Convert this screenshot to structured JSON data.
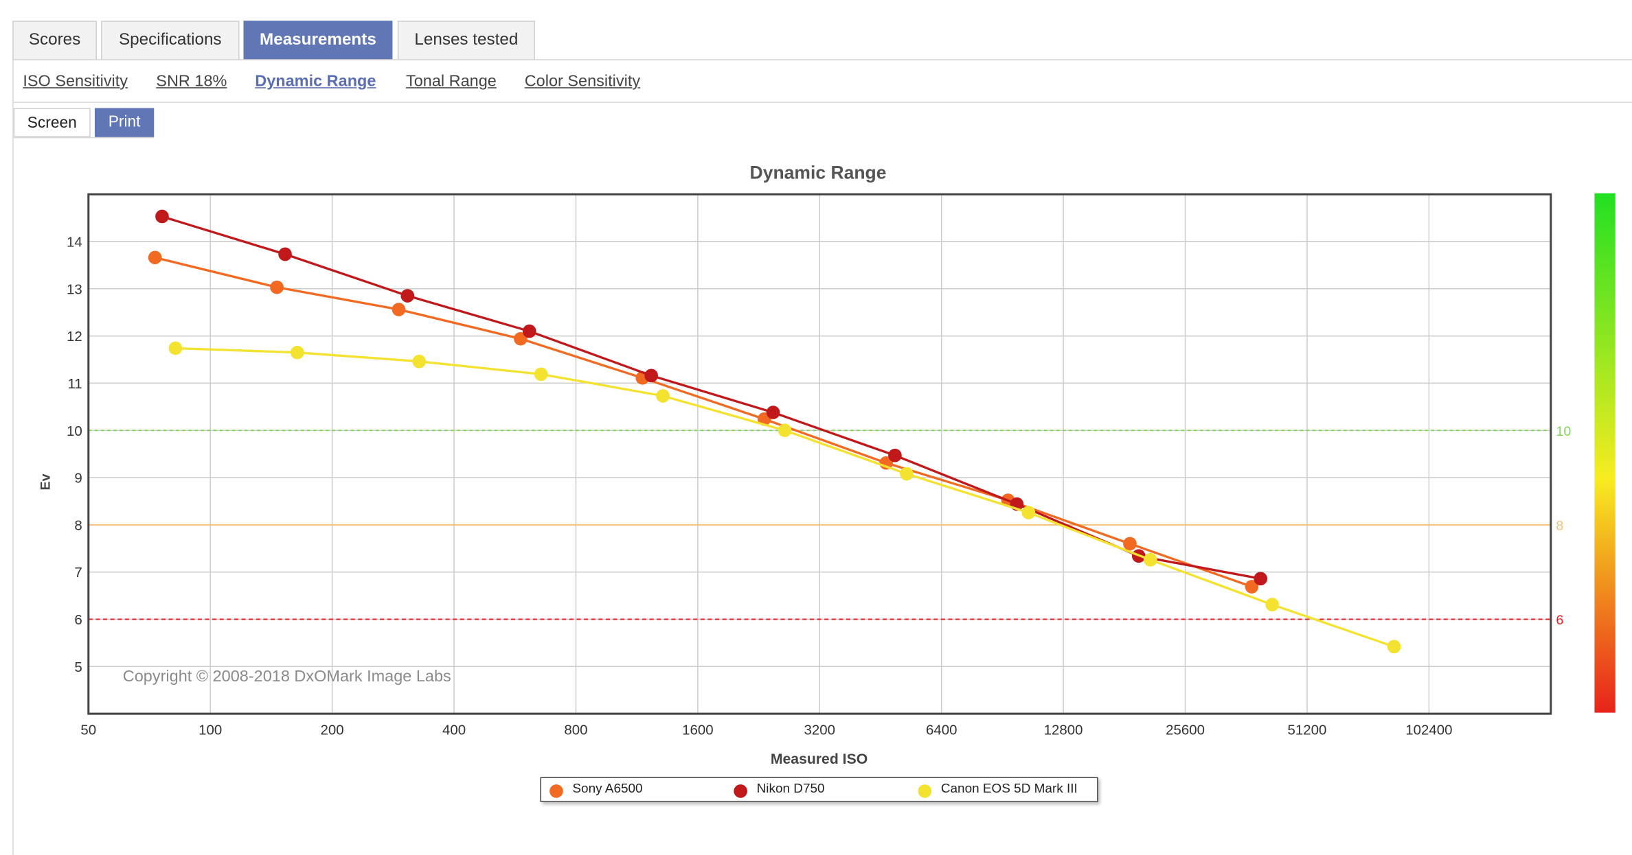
{
  "tabs": [
    {
      "label": "Scores",
      "active": false
    },
    {
      "label": "Specifications",
      "active": false
    },
    {
      "label": "Measurements",
      "active": true
    },
    {
      "label": "Lenses tested",
      "active": false
    }
  ],
  "subnav": [
    {
      "label": "ISO Sensitivity",
      "active": false
    },
    {
      "label": "SNR 18%",
      "active": false
    },
    {
      "label": "Dynamic Range",
      "active": true
    },
    {
      "label": "Tonal Range",
      "active": false
    },
    {
      "label": "Color Sensitivity",
      "active": false
    }
  ],
  "view_toggle": {
    "screen_label": "Screen",
    "print_label": "Print",
    "selected": "Print"
  },
  "colors": {
    "accent": "#6076b5",
    "sony": "#f26a21",
    "nikon": "#c0181b",
    "canon": "#f3e330",
    "line_10": "#7ed957",
    "line_8": "#f2c27a",
    "line_6": "#e52323"
  },
  "chart_data": {
    "type": "line",
    "title": "Dynamic Range",
    "xlabel": "Measured ISO",
    "ylabel": "Ev",
    "x_scale": "log2",
    "xlim": [
      50,
      204800
    ],
    "ylim": [
      4,
      15
    ],
    "x_ticks": [
      "50",
      "100",
      "200",
      "400",
      "800",
      "1600",
      "3200",
      "6400",
      "12800",
      "25600",
      "51200",
      "102400"
    ],
    "y_ticks": [
      5,
      6,
      7,
      8,
      9,
      10,
      11,
      12,
      13,
      14
    ],
    "grid": true,
    "legend_position": "bottom",
    "reference_lines": [
      {
        "y": 10,
        "label": "10",
        "color": "#7ed957",
        "style": "dashed"
      },
      {
        "y": 8,
        "label": "8",
        "color": "#f2c27a",
        "style": "solid"
      },
      {
        "y": 6,
        "label": "6",
        "color": "#e52323",
        "style": "dashed"
      }
    ],
    "color_scale": {
      "top": "#22e022",
      "middle": "#f7ec20",
      "bottom": "#e8231b"
    },
    "copyright": "Copyright © 2008-2018 DxOMark Image Labs",
    "series": [
      {
        "name": "Sony A6500",
        "color": "#f26a21",
        "points": [
          [
            73,
            13.66
          ],
          [
            146,
            13.03
          ],
          [
            292,
            12.56
          ],
          [
            584,
            11.94
          ],
          [
            1168,
            11.11
          ],
          [
            2336,
            10.24
          ],
          [
            4672,
            9.31
          ],
          [
            9344,
            8.52
          ],
          [
            18688,
            7.6
          ],
          [
            37376,
            6.69
          ]
        ]
      },
      {
        "name": "Nikon D750",
        "color": "#c0181b",
        "points": [
          [
            76,
            14.53
          ],
          [
            153,
            13.73
          ],
          [
            307,
            12.85
          ],
          [
            614,
            12.1
          ],
          [
            1228,
            11.16
          ],
          [
            2456,
            10.38
          ],
          [
            4911,
            9.47
          ],
          [
            9823,
            8.44
          ],
          [
            19646,
            7.34
          ],
          [
            39291,
            6.86
          ]
        ]
      },
      {
        "name": "Canon EOS 5D Mark III",
        "color": "#f3e330",
        "points": [
          [
            82,
            11.74
          ],
          [
            164,
            11.65
          ],
          [
            328,
            11.46
          ],
          [
            656,
            11.19
          ],
          [
            1312,
            10.73
          ],
          [
            2624,
            10.0
          ],
          [
            5248,
            9.08
          ],
          [
            10497,
            8.26
          ],
          [
            20994,
            7.26
          ],
          [
            41987,
            6.31
          ],
          [
            83975,
            5.42
          ]
        ]
      }
    ]
  }
}
